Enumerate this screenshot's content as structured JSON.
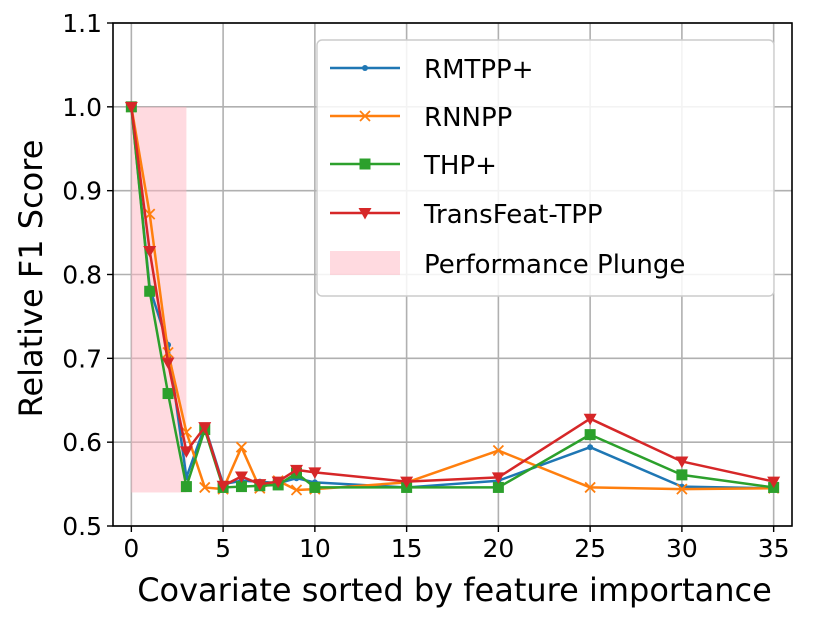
{
  "chart_data": {
    "type": "line",
    "title": "",
    "xlabel": "Covariate sorted by feature importance",
    "ylabel": "Relative F1 Score",
    "xlim": [
      -1,
      36
    ],
    "ylim": [
      0.5,
      1.1
    ],
    "xticks": [
      "0",
      "5",
      "10",
      "15",
      "20",
      "25",
      "30",
      "35"
    ],
    "yticks": [
      "0.5",
      "0.6",
      "0.7",
      "0.8",
      "0.9",
      "1.0",
      "1.1"
    ],
    "xtick_values": [
      0,
      5,
      10,
      15,
      20,
      25,
      30,
      35
    ],
    "ytick_values": [
      0.5,
      0.6,
      0.7,
      0.8,
      0.9,
      1.0,
      1.1
    ],
    "grid": true,
    "legend_position": "top-right",
    "x": [
      0,
      1,
      2,
      3,
      4,
      5,
      6,
      7,
      8,
      9,
      10,
      15,
      20,
      25,
      30,
      35
    ],
    "series": [
      {
        "name": "RMTPP+",
        "color": "#1f77b4",
        "marker": "dot",
        "values": [
          1.0,
          0.784,
          0.716,
          0.558,
          0.619,
          0.55,
          0.554,
          0.553,
          0.551,
          0.557,
          0.552,
          0.546,
          0.554,
          0.594,
          0.547,
          0.545
        ]
      },
      {
        "name": "RNNPP",
        "color": "#ff7f0e",
        "marker": "x",
        "values": [
          1.0,
          0.872,
          0.707,
          0.612,
          0.546,
          0.544,
          0.594,
          0.545,
          0.554,
          0.543,
          0.544,
          0.552,
          0.59,
          0.546,
          0.544,
          0.545
        ]
      },
      {
        "name": "THP+",
        "color": "#2ca02c",
        "marker": "square",
        "values": [
          1.0,
          0.78,
          0.658,
          0.547,
          0.615,
          0.546,
          0.547,
          0.548,
          0.549,
          0.563,
          0.546,
          0.546,
          0.546,
          0.609,
          0.561,
          0.546
        ]
      },
      {
        "name": "TransFeat-TPP",
        "color": "#d62728",
        "marker": "triangle-down",
        "values": [
          1.0,
          0.828,
          0.695,
          0.589,
          0.618,
          0.548,
          0.559,
          0.55,
          0.553,
          0.567,
          0.564,
          0.553,
          0.558,
          0.628,
          0.577,
          0.553
        ]
      }
    ],
    "shaded_region": {
      "name": "Performance Plunge",
      "color": "#ffb6c1",
      "x_range": [
        0,
        3
      ],
      "y_range": [
        0.54,
        1.0
      ]
    }
  }
}
